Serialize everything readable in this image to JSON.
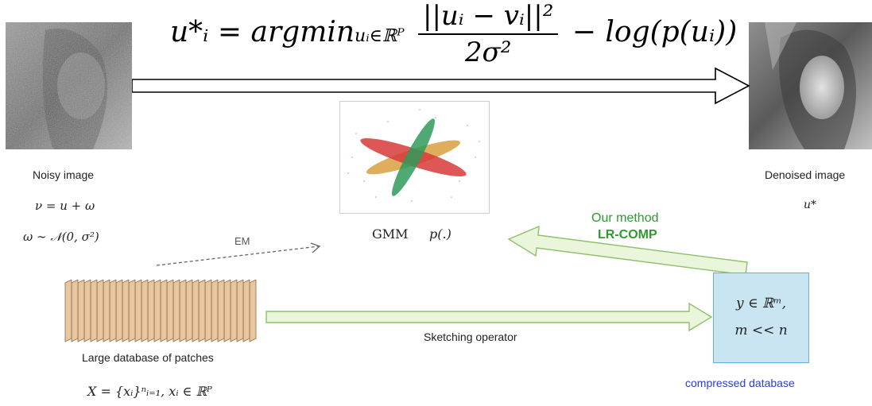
{
  "formula": {
    "lhs": "u*ᵢ = argmin",
    "subscript": "uᵢ∈ℝᴾ",
    "numerator": "||uᵢ − vᵢ||²",
    "denominator": "2σ²",
    "tail": "− log(p(uᵢ))"
  },
  "noisy": {
    "label": "Noisy image",
    "eq1": "ν = u + ω",
    "eq2": "ω ∼ 𝒩(0, σ²)"
  },
  "denoised": {
    "label": "Denoised image",
    "eq": "u*"
  },
  "gmm": {
    "label": "GMM",
    "p_label": "p(.)"
  },
  "em_label": "EM",
  "method": {
    "line1": "Our method",
    "line2": "LR-COMP",
    "color": "#2e9b2e"
  },
  "patches": {
    "label": "Large database of patches",
    "eq": "X = {xᵢ}ⁿᵢ₌₁, xᵢ ∈ ℝᴾ"
  },
  "sketching_label": "Sketching operator",
  "compressed": {
    "line1": "y ∈ ℝᵐ,",
    "line2": "m << n",
    "label": "compressed database",
    "label_color": "#2a3fcf"
  },
  "colors": {
    "arrow_fill": "#eaf6dc",
    "arrow_stroke": "#8ec06a",
    "box_fill": "#c9e5f2",
    "patch_fill": "#e8c7a0",
    "patch_stroke": "#8a6a48"
  }
}
